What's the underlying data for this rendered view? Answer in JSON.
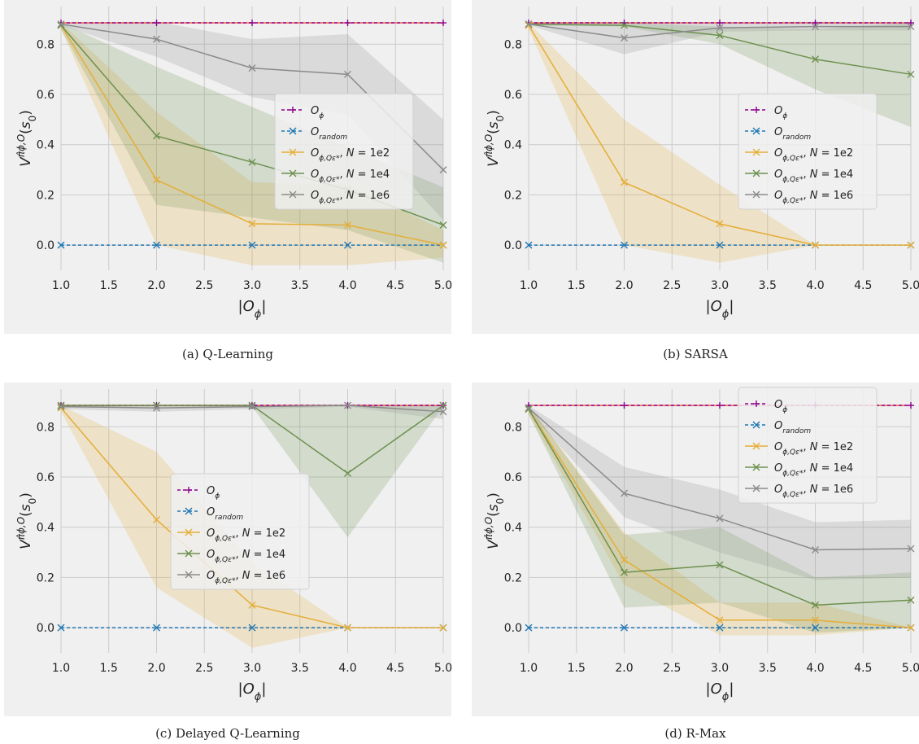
{
  "figure": {
    "captions": [
      "(a) Q-Learning",
      "(b) SARSA",
      "(c) Delayed Q-Learning",
      "(d) R-Max"
    ]
  },
  "colors": {
    "background": "#f0f0f0",
    "grid": "#cbcbcb",
    "reference": "#fc4f30",
    "O_phi": "#8b008b",
    "O_random": "#1f77b4",
    "N1e2": "#e5ae38",
    "N1e4": "#6d904f",
    "N1e6": "#8b8b8b"
  },
  "chart_data": [
    {
      "type": "line",
      "title": "(a) Q-Learning",
      "xlabel": "|O_ϕ|",
      "ylabel": "V^{π̂_{ϕ,O}}(s_0)",
      "xlim": [
        1.0,
        5.0
      ],
      "ylim": [
        -0.1,
        0.95
      ],
      "x_ticks": [
        "1.0",
        "1.5",
        "2.0",
        "2.5",
        "3.0",
        "3.5",
        "4.0",
        "4.5",
        "5.0"
      ],
      "y_ticks": [
        "0.0",
        "0.2",
        "0.4",
        "0.6",
        "0.8"
      ],
      "grid": true,
      "legend_position": "center-right",
      "reference_line": 0.885,
      "x": [
        1,
        2,
        3,
        4,
        5
      ],
      "series": [
        {
          "key": "O_phi",
          "name": "O_ϕ",
          "values": [
            0.885,
            0.885,
            0.885,
            0.885,
            0.885
          ],
          "marker": "+",
          "dashed": true,
          "lower": null,
          "upper": null
        },
        {
          "key": "O_random",
          "name": "O_random",
          "values": [
            0.0,
            0.0,
            0.0,
            0.0,
            0.0
          ],
          "marker": "x",
          "dashed": true,
          "lower": null,
          "upper": null
        },
        {
          "key": "N1e2",
          "name": "O_{ϕ,Q_ε*}, N = 1e2",
          "values": [
            0.875,
            0.26,
            0.085,
            0.08,
            0.0
          ],
          "marker": "x",
          "dashed": false,
          "lower": [
            0.86,
            0.0,
            -0.08,
            -0.08,
            -0.05
          ],
          "upper": [
            0.885,
            0.53,
            0.25,
            0.24,
            0.06
          ]
        },
        {
          "key": "N1e4",
          "name": "O_{ϕ,Q_ε*}, N = 1e4",
          "values": [
            0.875,
            0.435,
            0.33,
            0.22,
            0.08
          ],
          "marker": "x",
          "dashed": false,
          "lower": [
            0.86,
            0.16,
            0.11,
            0.06,
            -0.07
          ],
          "upper": [
            0.885,
            0.71,
            0.55,
            0.39,
            0.23
          ]
        },
        {
          "key": "N1e6",
          "name": "O_{ϕ,Q_ε*}, N = 1e6",
          "values": [
            0.88,
            0.82,
            0.705,
            0.68,
            0.3
          ],
          "marker": "x",
          "dashed": false,
          "lower": [
            0.875,
            0.75,
            0.59,
            0.52,
            0.1
          ],
          "upper": [
            0.885,
            0.89,
            0.82,
            0.84,
            0.5
          ]
        }
      ]
    },
    {
      "type": "line",
      "title": "(b) SARSA",
      "xlabel": "|O_ϕ|",
      "ylabel": "V^{π̂_{ϕ,O}}(s_0)",
      "xlim": [
        1.0,
        5.0
      ],
      "ylim": [
        -0.1,
        0.95
      ],
      "x_ticks": [
        "1.0",
        "1.5",
        "2.0",
        "2.5",
        "3.0",
        "3.5",
        "4.0",
        "4.5",
        "5.0"
      ],
      "y_ticks": [
        "0.0",
        "0.2",
        "0.4",
        "0.6",
        "0.8"
      ],
      "grid": true,
      "legend_position": "center-right",
      "reference_line": 0.885,
      "x": [
        1,
        2,
        3,
        4,
        5
      ],
      "series": [
        {
          "key": "O_phi",
          "name": "O_ϕ",
          "values": [
            0.885,
            0.885,
            0.885,
            0.885,
            0.885
          ],
          "marker": "+",
          "dashed": true,
          "lower": null,
          "upper": null
        },
        {
          "key": "O_random",
          "name": "O_random",
          "values": [
            0.0,
            0.0,
            0.0,
            0.0,
            0.0
          ],
          "marker": "x",
          "dashed": true,
          "lower": null,
          "upper": null
        },
        {
          "key": "N1e2",
          "name": "O_{ϕ,Q_ε*}, N = 1e2",
          "values": [
            0.875,
            0.25,
            0.085,
            0.0,
            0.0
          ],
          "marker": "x",
          "dashed": false,
          "lower": [
            0.86,
            0.0,
            -0.07,
            0.0,
            0.0
          ],
          "upper": [
            0.885,
            0.5,
            0.24,
            0.0,
            0.0
          ]
        },
        {
          "key": "N1e4",
          "name": "O_{ϕ,Q_ε*}, N = 1e4",
          "values": [
            0.88,
            0.875,
            0.835,
            0.74,
            0.68
          ],
          "marker": "x",
          "dashed": false,
          "lower": [
            0.875,
            0.87,
            0.8,
            0.62,
            0.47
          ],
          "upper": [
            0.885,
            0.885,
            0.87,
            0.86,
            0.885
          ]
        },
        {
          "key": "N1e6",
          "name": "O_{ϕ,Q_ε*}, N = 1e6",
          "values": [
            0.88,
            0.825,
            0.865,
            0.87,
            0.87
          ],
          "marker": "x",
          "dashed": false,
          "lower": [
            0.875,
            0.76,
            0.85,
            0.855,
            0.855
          ],
          "upper": [
            0.885,
            0.885,
            0.885,
            0.89,
            0.885
          ]
        }
      ]
    },
    {
      "type": "line",
      "title": "(c) Delayed Q-Learning",
      "xlabel": "|O_ϕ|",
      "ylabel": "V^{π̂_{ϕ,O}}(s_0)",
      "xlim": [
        1.0,
        5.0
      ],
      "ylim": [
        -0.1,
        0.95
      ],
      "x_ticks": [
        "1.0",
        "1.5",
        "2.0",
        "2.5",
        "3.0",
        "3.5",
        "4.0",
        "4.5",
        "5.0"
      ],
      "y_ticks": [
        "0.0",
        "0.2",
        "0.4",
        "0.6",
        "0.8"
      ],
      "grid": true,
      "legend_position": "center",
      "reference_line": 0.885,
      "x": [
        1,
        2,
        3,
        4,
        5
      ],
      "series": [
        {
          "key": "O_phi",
          "name": "O_ϕ",
          "values": [
            0.885,
            0.885,
            0.885,
            0.885,
            0.885
          ],
          "marker": "+",
          "dashed": true,
          "lower": null,
          "upper": null
        },
        {
          "key": "O_random",
          "name": "O_random",
          "values": [
            0.0,
            0.0,
            0.0,
            0.0,
            0.0
          ],
          "marker": "x",
          "dashed": true,
          "lower": null,
          "upper": null
        },
        {
          "key": "N1e2",
          "name": "O_{ϕ,Q_ε*}, N = 1e2",
          "values": [
            0.875,
            0.43,
            0.09,
            0.0,
            0.0
          ],
          "marker": "x",
          "dashed": false,
          "lower": [
            0.86,
            0.16,
            -0.08,
            0.0,
            0.0
          ],
          "upper": [
            0.885,
            0.7,
            0.26,
            0.0,
            0.0
          ]
        },
        {
          "key": "N1e4",
          "name": "O_{ϕ,Q_ε*}, N = 1e4",
          "values": [
            0.885,
            0.885,
            0.885,
            0.615,
            0.885
          ],
          "marker": "x",
          "dashed": false,
          "lower": [
            0.88,
            0.88,
            0.88,
            0.36,
            0.88
          ],
          "upper": [
            0.885,
            0.885,
            0.885,
            0.885,
            0.885
          ]
        },
        {
          "key": "N1e6",
          "name": "O_{ϕ,Q_ε*}, N = 1e6",
          "values": [
            0.88,
            0.875,
            0.88,
            0.885,
            0.86
          ],
          "marker": "x",
          "dashed": false,
          "lower": [
            0.87,
            0.86,
            0.87,
            0.88,
            0.83
          ],
          "upper": [
            0.885,
            0.885,
            0.885,
            0.89,
            0.885
          ]
        }
      ]
    },
    {
      "type": "line",
      "title": "(d) R-Max",
      "xlabel": "|O_ϕ|",
      "ylabel": "V^{π̂_{ϕ,O}}(s_0)",
      "xlim": [
        1.0,
        5.0
      ],
      "ylim": [
        -0.1,
        0.95
      ],
      "x_ticks": [
        "1.0",
        "1.5",
        "2.0",
        "2.5",
        "3.0",
        "3.5",
        "4.0",
        "4.5",
        "5.0"
      ],
      "y_ticks": [
        "0.0",
        "0.2",
        "0.4",
        "0.6",
        "0.8"
      ],
      "grid": true,
      "legend_position": "top-right",
      "reference_line": 0.885,
      "x": [
        1,
        2,
        3,
        4,
        5
      ],
      "series": [
        {
          "key": "O_phi",
          "name": "O_ϕ",
          "values": [
            0.885,
            0.885,
            0.885,
            0.885,
            0.885
          ],
          "marker": "+",
          "dashed": true,
          "lower": null,
          "upper": null
        },
        {
          "key": "O_random",
          "name": "O_random",
          "values": [
            0.0,
            0.0,
            0.0,
            0.0,
            0.0
          ],
          "marker": "x",
          "dashed": true,
          "lower": null,
          "upper": null
        },
        {
          "key": "N1e2",
          "name": "O_{ϕ,Q_ε*}, N = 1e2",
          "values": [
            0.87,
            0.27,
            0.03,
            0.03,
            0.0
          ],
          "marker": "x",
          "dashed": false,
          "lower": [
            0.85,
            0.17,
            -0.03,
            -0.03,
            0.0
          ],
          "upper": [
            0.885,
            0.38,
            0.1,
            0.1,
            0.0
          ]
        },
        {
          "key": "N1e4",
          "name": "O_{ϕ,Q_ε*}, N = 1e4",
          "values": [
            0.87,
            0.22,
            0.25,
            0.09,
            0.11
          ],
          "marker": "x",
          "dashed": false,
          "lower": [
            0.85,
            0.08,
            0.1,
            -0.02,
            0.0
          ],
          "upper": [
            0.885,
            0.37,
            0.4,
            0.2,
            0.22
          ]
        },
        {
          "key": "N1e6",
          "name": "O_{ϕ,Q_ε*}, N = 1e6",
          "values": [
            0.875,
            0.535,
            0.435,
            0.31,
            0.315
          ],
          "marker": "x",
          "dashed": false,
          "lower": [
            0.86,
            0.44,
            0.3,
            0.19,
            0.2
          ],
          "upper": [
            0.885,
            0.64,
            0.55,
            0.42,
            0.43
          ]
        }
      ]
    }
  ]
}
